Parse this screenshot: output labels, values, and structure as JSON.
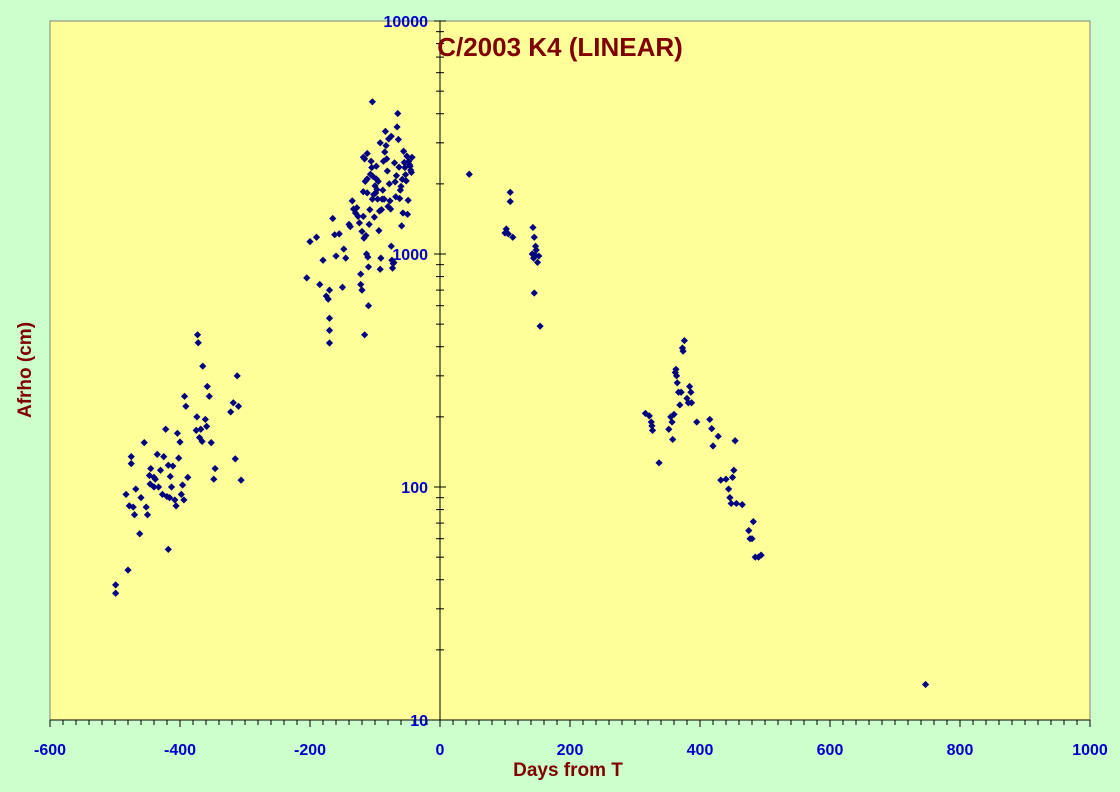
{
  "colors": {
    "background": "#ccffcc",
    "plot_area": "#ffff99",
    "marker": "#000080",
    "title": "#800000",
    "tick_labels": "#0000cc"
  },
  "chart_data": {
    "type": "scatter",
    "title": "C/2003 K4 (LINEAR)",
    "xlabel": "Days from T",
    "ylabel": "Afrho (cm)",
    "xlim": [
      -600,
      1000
    ],
    "ylim": [
      10,
      10000
    ],
    "yscale": "log",
    "grid": false,
    "legend": "none",
    "marker": "diamond",
    "x_ticks": [
      {
        "value": -600,
        "label": "-600"
      },
      {
        "value": -400,
        "label": "-400"
      },
      {
        "value": -200,
        "label": "-200"
      },
      {
        "value": 0,
        "label": "0"
      },
      {
        "value": 200,
        "label": "200"
      },
      {
        "value": 400,
        "label": "400"
      },
      {
        "value": 600,
        "label": "600"
      },
      {
        "value": 800,
        "label": "800"
      },
      {
        "value": 1000,
        "label": "1000"
      }
    ],
    "y_ticks": [
      {
        "value": 10,
        "label": "10"
      },
      {
        "value": 100,
        "label": "100"
      },
      {
        "value": 1000,
        "label": "1000"
      },
      {
        "value": 10000,
        "label": "10000"
      }
    ],
    "series": [
      {
        "points": [
          [
            -499,
            38
          ],
          [
            -499,
            35
          ],
          [
            -480,
            44
          ],
          [
            -483,
            93
          ],
          [
            -478,
            83
          ],
          [
            -475,
            135
          ],
          [
            -475,
            126
          ],
          [
            -472,
            82
          ],
          [
            -470,
            76
          ],
          [
            -468,
            98
          ],
          [
            -462,
            63
          ],
          [
            -460,
            90
          ],
          [
            -455,
            155
          ],
          [
            -452,
            82
          ],
          [
            -450,
            76
          ],
          [
            -447,
            112
          ],
          [
            -446,
            103
          ],
          [
            -445,
            120
          ],
          [
            -440,
            110
          ],
          [
            -440,
            100
          ],
          [
            -438,
            108
          ],
          [
            -435,
            138
          ],
          [
            -433,
            100
          ],
          [
            -430,
            118
          ],
          [
            -427,
            93
          ],
          [
            -425,
            135
          ],
          [
            -422,
            177
          ],
          [
            -420,
            91
          ],
          [
            -418,
            54
          ],
          [
            -418,
            124
          ],
          [
            -416,
            90
          ],
          [
            -415,
            111
          ],
          [
            -413,
            100
          ],
          [
            -411,
            123
          ],
          [
            -408,
            88
          ],
          [
            -406,
            83
          ],
          [
            -404,
            170
          ],
          [
            -402,
            133
          ],
          [
            -400,
            156
          ],
          [
            -398,
            93
          ],
          [
            -396,
            102
          ],
          [
            -394,
            88
          ],
          [
            -393,
            245
          ],
          [
            -391,
            222
          ],
          [
            -388,
            110
          ],
          [
            -375,
            175
          ],
          [
            -374,
            200
          ],
          [
            -373,
            450
          ],
          [
            -372,
            416
          ],
          [
            -370,
            163
          ],
          [
            -368,
            177
          ],
          [
            -366,
            157
          ],
          [
            -365,
            330
          ],
          [
            -361,
            195
          ],
          [
            -359,
            182
          ],
          [
            -358,
            270
          ],
          [
            -355,
            245
          ],
          [
            -352,
            155
          ],
          [
            -348,
            108
          ],
          [
            -346,
            120
          ],
          [
            -322,
            210
          ],
          [
            -318,
            230
          ],
          [
            -315,
            132
          ],
          [
            -312,
            300
          ],
          [
            -310,
            222
          ],
          [
            -306,
            107
          ],
          [
            -205,
            790
          ],
          [
            -200,
            1130
          ],
          [
            -190,
            1180
          ],
          [
            -185,
            740
          ],
          [
            -180,
            940
          ],
          [
            -175,
            660
          ],
          [
            -172,
            640
          ],
          [
            -170,
            700
          ],
          [
            -170,
            530
          ],
          [
            -170,
            470
          ],
          [
            -170,
            415
          ],
          [
            -165,
            1420
          ],
          [
            -162,
            1210
          ],
          [
            -160,
            980
          ],
          [
            -155,
            1220
          ],
          [
            -150,
            720
          ],
          [
            -148,
            1050
          ],
          [
            -145,
            960
          ],
          [
            -140,
            1340
          ],
          [
            -138,
            1310
          ],
          [
            -135,
            1690
          ],
          [
            -133,
            1560
          ],
          [
            -130,
            1500
          ],
          [
            -128,
            1580
          ],
          [
            -126,
            1450
          ],
          [
            -124,
            1360
          ],
          [
            -122,
            820
          ],
          [
            -122,
            740
          ],
          [
            -120,
            700
          ],
          [
            -120,
            1250
          ],
          [
            -118,
            1850
          ],
          [
            -118,
            1450
          ],
          [
            -117,
            1170
          ],
          [
            -116,
            2560
          ],
          [
            -115,
            2050
          ],
          [
            -114,
            1200
          ],
          [
            -113,
            1000
          ],
          [
            -112,
            2100
          ],
          [
            -112,
            1830
          ],
          [
            -111,
            970
          ],
          [
            -110,
            880
          ],
          [
            -110,
            600
          ],
          [
            -109,
            1340
          ],
          [
            -108,
            1550
          ],
          [
            -107,
            2200
          ],
          [
            -106,
            2500
          ],
          [
            -105,
            2350
          ],
          [
            -104,
            4500
          ],
          [
            -104,
            1720
          ],
          [
            -103,
            2150
          ],
          [
            -102,
            1800
          ],
          [
            -101,
            1440
          ],
          [
            -100,
            1960
          ],
          [
            -99,
            1830
          ],
          [
            -98,
            2380
          ],
          [
            -97,
            1890
          ],
          [
            -96,
            1720
          ],
          [
            -95,
            2050
          ],
          [
            -94,
            1260
          ],
          [
            -93,
            1530
          ],
          [
            -92,
            860
          ],
          [
            -91,
            960
          ],
          [
            -90,
            1550
          ],
          [
            -89,
            1720
          ],
          [
            -88,
            1880
          ],
          [
            -87,
            2500
          ],
          [
            -86,
            1720
          ],
          [
            -85,
            2740
          ],
          [
            -84,
            3360
          ],
          [
            -83,
            2920
          ],
          [
            -82,
            2560
          ],
          [
            -81,
            2270
          ],
          [
            -80,
            1600
          ],
          [
            -79,
            3120
          ],
          [
            -78,
            2000
          ],
          [
            -77,
            1690
          ],
          [
            -76,
            1560
          ],
          [
            -75,
            1080
          ],
          [
            -74,
            940
          ],
          [
            -73,
            870
          ],
          [
            -72,
            910
          ],
          [
            -71,
            920
          ],
          [
            -70,
            2460
          ],
          [
            -69,
            2040
          ],
          [
            -68,
            1760
          ],
          [
            -67,
            2170
          ],
          [
            -66,
            3510
          ],
          [
            -65,
            4010
          ],
          [
            -64,
            3100
          ],
          [
            -63,
            2360
          ],
          [
            -62,
            1730
          ],
          [
            -61,
            1880
          ],
          [
            -60,
            1950
          ],
          [
            -59,
            1320
          ],
          [
            -58,
            2090
          ],
          [
            -57,
            1500
          ],
          [
            -56,
            2760
          ],
          [
            -55,
            2470
          ],
          [
            -54,
            2350
          ],
          [
            -53,
            2190
          ],
          [
            -52,
            2060
          ],
          [
            -51,
            2630
          ],
          [
            -50,
            1480
          ],
          [
            -49,
            1700
          ],
          [
            -48,
            2500
          ],
          [
            -47,
            2420
          ],
          [
            -46,
            2380
          ],
          [
            -45,
            2290
          ],
          [
            -44,
            2240
          ],
          [
            -43,
            2600
          ],
          [
            -116,
            450
          ],
          [
            -118,
            2600
          ],
          [
            -112,
            2700
          ],
          [
            -98,
            2100
          ],
          [
            -92,
            3000
          ],
          [
            -75,
            3200
          ],
          [
            45,
            2200
          ],
          [
            100,
            1230
          ],
          [
            102,
            1280
          ],
          [
            105,
            1220
          ],
          [
            108,
            1840
          ],
          [
            108,
            1680
          ],
          [
            112,
            1180
          ],
          [
            142,
            1000
          ],
          [
            143,
            1300
          ],
          [
            144,
            960
          ],
          [
            145,
            1180
          ],
          [
            146,
            990
          ],
          [
            147,
            1080
          ],
          [
            148,
            1040
          ],
          [
            150,
            920
          ],
          [
            152,
            980
          ],
          [
            145,
            680
          ],
          [
            154,
            490
          ],
          [
            316,
            207
          ],
          [
            322,
            202
          ],
          [
            325,
            190
          ],
          [
            326,
            183
          ],
          [
            327,
            175
          ],
          [
            337,
            127
          ],
          [
            352,
            177
          ],
          [
            355,
            200
          ],
          [
            357,
            190
          ],
          [
            358,
            160
          ],
          [
            360,
            205
          ],
          [
            362,
            310
          ],
          [
            363,
            320
          ],
          [
            364,
            300
          ],
          [
            365,
            280
          ],
          [
            367,
            255
          ],
          [
            369,
            225
          ],
          [
            371,
            255
          ],
          [
            373,
            395
          ],
          [
            374,
            383
          ],
          [
            376,
            425
          ],
          [
            380,
            240
          ],
          [
            382,
            230
          ],
          [
            384,
            270
          ],
          [
            386,
            255
          ],
          [
            387,
            230
          ],
          [
            395,
            190
          ],
          [
            415,
            195
          ],
          [
            418,
            178
          ],
          [
            420,
            150
          ],
          [
            428,
            165
          ],
          [
            432,
            107
          ],
          [
            440,
            108
          ],
          [
            444,
            98
          ],
          [
            446,
            90
          ],
          [
            448,
            85
          ],
          [
            450,
            110
          ],
          [
            452,
            118
          ],
          [
            454,
            158
          ],
          [
            456,
            85
          ],
          [
            465,
            84
          ],
          [
            475,
            65
          ],
          [
            477,
            60
          ],
          [
            480,
            60
          ],
          [
            482,
            71
          ],
          [
            485,
            50
          ],
          [
            490,
            50
          ],
          [
            494,
            51
          ],
          [
            747,
            14.2
          ]
        ]
      }
    ]
  }
}
